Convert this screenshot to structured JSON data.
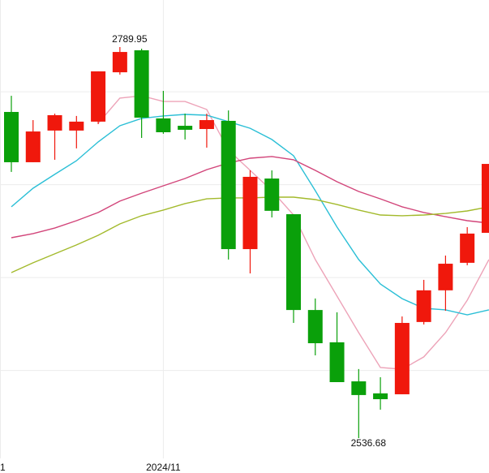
{
  "chart_data": {
    "type": "candlestick",
    "categories": [
      null,
      null,
      null,
      null,
      null,
      null,
      null,
      "2024/11",
      null,
      null,
      null,
      null,
      null,
      null,
      null,
      null,
      null,
      null,
      null,
      null,
      null,
      null,
      null
    ],
    "left_edge_label": "1",
    "open": [
      2748.8,
      2716.1,
      2736.7,
      2736.7,
      2742.5,
      2774.6,
      2788.9,
      2744.6,
      2739.8,
      2737.7,
      2743.0,
      2659.6,
      2705.5,
      2682.3,
      2620.0,
      2599.0,
      2573.6,
      2565.8,
      2565.2,
      2612.2,
      2632.8,
      2650.7,
      2670.2
    ],
    "high": [
      2759.3,
      2743.5,
      2747.7,
      2746.2,
      2775.2,
      2791.0,
      2789.95,
      2762.5,
      2747.7,
      2747.7,
      2749.8,
      2710.8,
      2710.8,
      2682.3,
      2627.5,
      2618.5,
      2581.6,
      2576.3,
      2615.8,
      2639.6,
      2655.4,
      2673.9,
      2715.0
    ],
    "low": [
      2709.8,
      2716.1,
      2717.7,
      2725.1,
      2740.9,
      2773.1,
      2731.9,
      2734.6,
      2730.9,
      2725.6,
      2652.8,
      2643.8,
      2680.2,
      2611.6,
      2590.5,
      2573.1,
      2536.68,
      2555.2,
      2565.2,
      2610.6,
      2619.5,
      2649.1,
      2670.2
    ],
    "close": [
      2716.1,
      2736.1,
      2746.7,
      2742.5,
      2775.2,
      2787.8,
      2745.1,
      2735.6,
      2737.2,
      2743.5,
      2659.6,
      2706.6,
      2684.5,
      2620.0,
      2598.4,
      2573.1,
      2564.7,
      2562.0,
      2611.6,
      2632.8,
      2650.1,
      2669.7,
      2715.0
    ],
    "up_color": "#f0180c",
    "down_color": "#0aa00a",
    "max_label": "2789.95",
    "min_label": "2536.68",
    "lines": [
      {
        "color": "#eda3b8",
        "values": [
          null,
          null,
          null,
          null,
          2741.4,
          2757.8,
          2759.3,
          2755.6,
          2755.6,
          2750.4,
          2724.0,
          2710.8,
          2697.6,
          2681.8,
          2652.8,
          2629.0,
          2605.3,
          2582.6,
          2581.5,
          2589.5,
          2605.3,
          2626.4,
          2652.8
        ]
      },
      {
        "color": "#2bbfd6",
        "values": [
          2687.1,
          2699.2,
          2708.2,
          2717.1,
          2729.3,
          2739.8,
          2744.6,
          2746.2,
          2747.2,
          2746.7,
          2742.5,
          2738.2,
          2730.9,
          2720.3,
          2697.6,
          2673.9,
          2652.8,
          2636.9,
          2627.4,
          2621.1,
          2620.1,
          2616.9,
          2620.1
        ]
      },
      {
        "color": "#d2457a",
        "values": [
          2667.0,
          2669.7,
          2673.3,
          2678.1,
          2683.4,
          2690.8,
          2696.0,
          2700.8,
          2705.5,
          2711.3,
          2715.6,
          2718.7,
          2719.8,
          2717.7,
          2710.8,
          2703.4,
          2697.1,
          2692.3,
          2687.1,
          2683.4,
          2680.7,
          2678.1,
          2676.5
        ]
      },
      {
        "color": "#a3ba2c",
        "values": [
          2644.3,
          2650.7,
          2656.5,
          2662.3,
          2668.6,
          2676.0,
          2681.3,
          2685.0,
          2689.2,
          2692.3,
          2692.9,
          2692.9,
          2693.4,
          2693.4,
          2691.8,
          2688.6,
          2685.0,
          2681.8,
          2681.3,
          2681.8,
          2682.8,
          2684.4,
          2687.1
        ]
      }
    ],
    "ylim": [
      2523.5,
      2821.6
    ],
    "yticks": [
      2580.7,
      2641.1,
      2701.5,
      2761.9
    ],
    "grid": true
  }
}
